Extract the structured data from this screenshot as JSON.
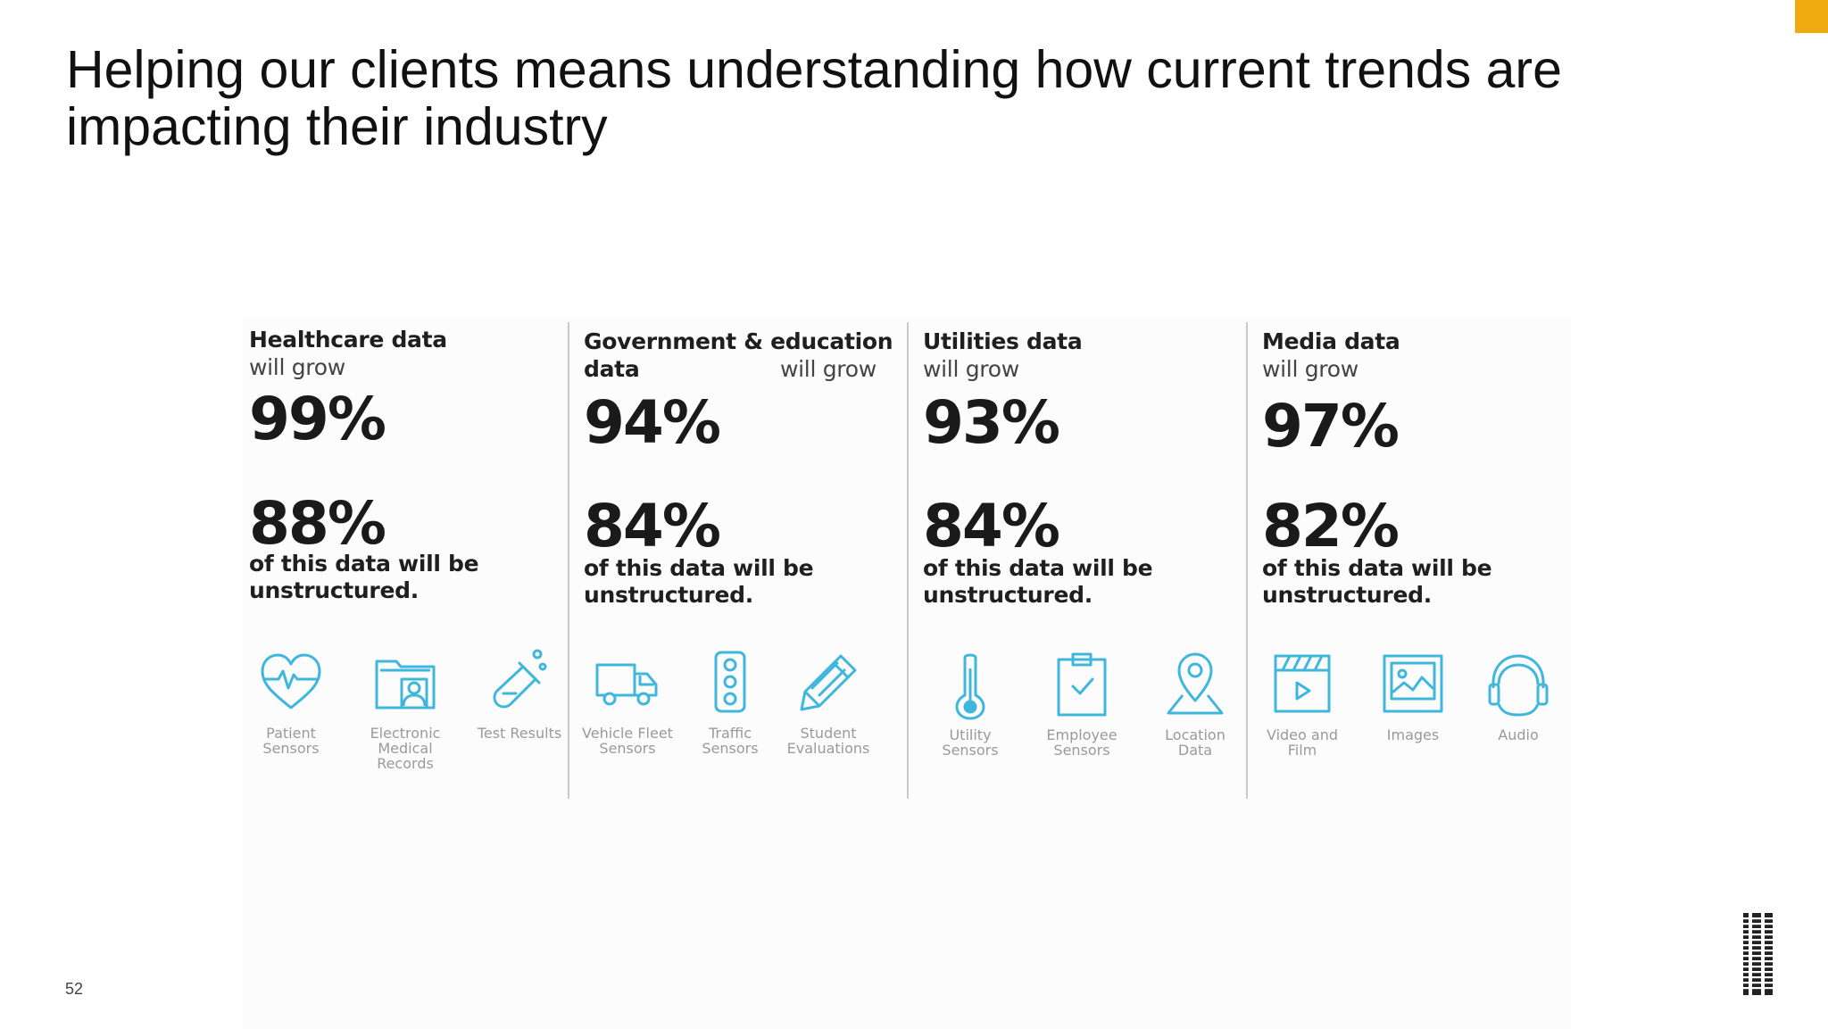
{
  "slide": {
    "title": "Helping our clients means understanding how current trends are impacting their industry",
    "page_number": "52",
    "accent_color": "#f0a90f",
    "icon_color": "#3fb6dc"
  },
  "columns": [
    {
      "heading_bold": "Healthcare data",
      "heading_light": "will grow",
      "growth": "99%",
      "unstructured": "88%",
      "description": "of this data will be unstructured.",
      "icons": [
        {
          "name": "heart-pulse-icon",
          "label": "Patient Sensors"
        },
        {
          "name": "folder-person-icon",
          "label": "Electronic Medical Records"
        },
        {
          "name": "test-tube-icon",
          "label": "Test Results"
        }
      ]
    },
    {
      "heading_bold": "Government & education data",
      "heading_light": "will grow",
      "growth": "94%",
      "unstructured": "84%",
      "description": "of this data will be unstructured.",
      "icons": [
        {
          "name": "truck-icon",
          "label": "Vehicle Fleet Sensors"
        },
        {
          "name": "traffic-light-icon",
          "label": "Traffic Sensors"
        },
        {
          "name": "pencil-icon",
          "label": "Student Evaluations"
        }
      ]
    },
    {
      "heading_bold": "Utilities data",
      "heading_light": "will grow",
      "growth": "93%",
      "unstructured": "84%",
      "description": "of this data will be unstructured.",
      "icons": [
        {
          "name": "thermometer-icon",
          "label": "Utility Sensors"
        },
        {
          "name": "clipboard-check-icon",
          "label": "Employee Sensors"
        },
        {
          "name": "map-pin-icon",
          "label": "Location Data"
        }
      ]
    },
    {
      "heading_bold": "Media data",
      "heading_light": "will grow",
      "growth": "97%",
      "unstructured": "82%",
      "description": "of this data will be unstructured.",
      "icons": [
        {
          "name": "clapperboard-icon",
          "label": "Video and Film"
        },
        {
          "name": "image-icon",
          "label": "Images"
        },
        {
          "name": "headphones-icon",
          "label": "Audio"
        }
      ]
    }
  ]
}
